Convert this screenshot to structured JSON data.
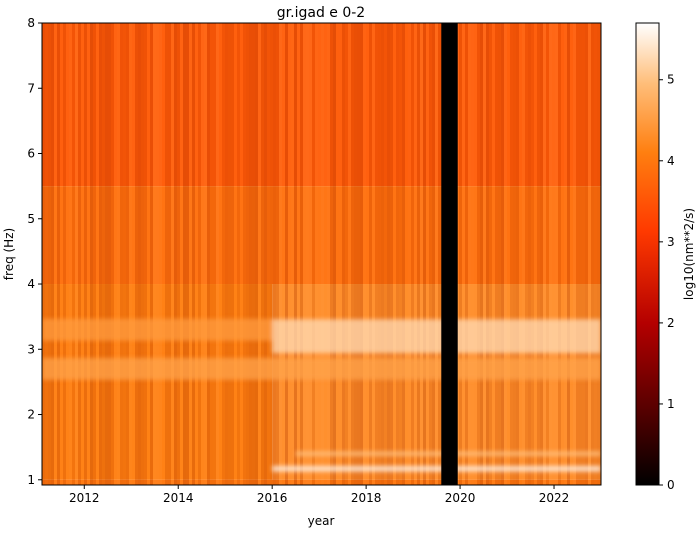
{
  "chart_data": {
    "type": "heatmap",
    "title": "gr.igad e 0-2",
    "xlabel": "year",
    "ylabel": "freq (Hz)",
    "xlim": [
      2011.1,
      2023.0
    ],
    "ylim": [
      0.92,
      8.0
    ],
    "x_ticks": [
      2012,
      2014,
      2016,
      2018,
      2020,
      2022
    ],
    "x_tick_labels": [
      "2012",
      "2014",
      "2016",
      "2018",
      "2020",
      "2022"
    ],
    "y_ticks": [
      1,
      2,
      3,
      4,
      5,
      6,
      7,
      8
    ],
    "y_tick_labels": [
      "1",
      "2",
      "3",
      "4",
      "5",
      "6",
      "7",
      "8"
    ],
    "colorbar": {
      "label": "log10(nm**2/s)",
      "range": [
        0,
        5.7
      ],
      "ticks": [
        0,
        1,
        2,
        3,
        4,
        5
      ],
      "tick_labels": [
        "0",
        "1",
        "2",
        "3",
        "4",
        "5"
      ],
      "colormap": "gist_heat",
      "colors": [
        "#000000",
        "#600000",
        "#c00000",
        "#ff4000",
        "#ff8000",
        "#ffc080",
        "#ffffff"
      ]
    },
    "data_gap": {
      "x_start": 2019.6,
      "x_end": 2019.95,
      "value": 0
    },
    "background_levels": [
      {
        "freq_range": [
          5.5,
          8.0
        ],
        "x_range": [
          2011.1,
          2023.0
        ],
        "value": 3.6
      },
      {
        "freq_range": [
          4.0,
          5.5
        ],
        "x_range": [
          2011.1,
          2023.0
        ],
        "value": 3.9
      },
      {
        "freq_range": [
          1.0,
          4.0
        ],
        "x_range": [
          2011.1,
          2016.0
        ],
        "value": 4.1
      },
      {
        "freq_range": [
          1.0,
          4.0
        ],
        "x_range": [
          2016.0,
          2023.0
        ],
        "value": 4.3
      }
    ],
    "bright_bands": [
      {
        "freq": 3.3,
        "x_range": [
          2011.1,
          2016.0
        ],
        "value": 4.5
      },
      {
        "freq": 3.2,
        "x_range": [
          2016.0,
          2023.0
        ],
        "value": 5.3
      },
      {
        "freq": 2.7,
        "x_range": [
          2011.1,
          2023.0
        ],
        "value": 4.6
      },
      {
        "freq": 1.4,
        "x_range": [
          2016.5,
          2023.0
        ],
        "value": 5.0
      },
      {
        "freq": 1.17,
        "x_range": [
          2016.0,
          2023.0
        ],
        "value": 5.6
      }
    ]
  }
}
